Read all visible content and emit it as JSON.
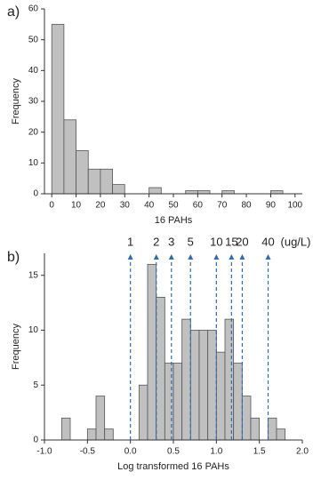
{
  "chart_data": [
    {
      "type": "histogram",
      "panel_label": "a)",
      "xlabel": "16 PAHs",
      "ylabel": "Frequency",
      "bins": [
        0,
        5,
        10,
        15,
        20,
        25,
        30,
        35,
        40,
        45,
        50,
        55,
        60,
        65,
        70,
        75,
        80,
        85,
        90,
        95
      ],
      "values": [
        55,
        24,
        14,
        8,
        8,
        3,
        0,
        0,
        2,
        0,
        0,
        1,
        1,
        0,
        1,
        0,
        0,
        0,
        1
      ],
      "color": "#c0c0c0",
      "xlim": [
        -3,
        103
      ],
      "xticks": [
        0,
        10,
        20,
        30,
        40,
        50,
        60,
        70,
        80,
        90,
        100
      ],
      "ylim": [
        0,
        60
      ],
      "yticks": [
        0,
        10,
        20,
        30,
        40,
        50,
        60
      ]
    },
    {
      "type": "histogram",
      "panel_label": "b)",
      "xlabel": "Log transformed 16 PAHs",
      "ylabel": "Frequency",
      "bins": [
        -0.8,
        -0.7,
        -0.6,
        -0.5,
        -0.4,
        -0.3,
        -0.2,
        -0.1,
        0.0,
        0.1,
        0.2,
        0.3,
        0.4,
        0.5,
        0.6,
        0.7,
        0.8,
        0.9,
        1.0,
        1.1,
        1.2,
        1.3,
        1.4,
        1.5,
        1.6,
        1.7,
        1.8,
        1.9
      ],
      "values": [
        2,
        0,
        0,
        1,
        4,
        1,
        0,
        0,
        0,
        5,
        16,
        13,
        7,
        7,
        11,
        10,
        10,
        10,
        8,
        11,
        7,
        4,
        2,
        0,
        2,
        1,
        0
      ],
      "color": "#c0c0c0",
      "xlim": [
        -1,
        2
      ],
      "xticks": [
        {
          "value": -1,
          "label": "-1.0"
        },
        -0.5,
        {
          "value": 0,
          "label": "0.0"
        },
        0.5,
        {
          "value": 1,
          "label": "1.0"
        },
        1.5,
        {
          "value": 2,
          "label": "2.0"
        }
      ],
      "ylim": [
        0,
        17
      ],
      "yticks": [
        0,
        5,
        10,
        15
      ],
      "annotations": [
        {
          "x": 0,
          "label": "1"
        },
        {
          "x": 0.301,
          "label": "2"
        },
        {
          "x": 0.477,
          "label": "3"
        },
        {
          "x": 0.699,
          "label": "5"
        },
        {
          "x": 1,
          "label": "10"
        },
        {
          "x": 1.176,
          "label": "15"
        },
        {
          "x": 1.301,
          "label": "20"
        },
        {
          "x": 1.602,
          "label": "40"
        }
      ],
      "annotation_unit": "(ug/L)",
      "annotation_color": "#2f6bb3"
    }
  ]
}
